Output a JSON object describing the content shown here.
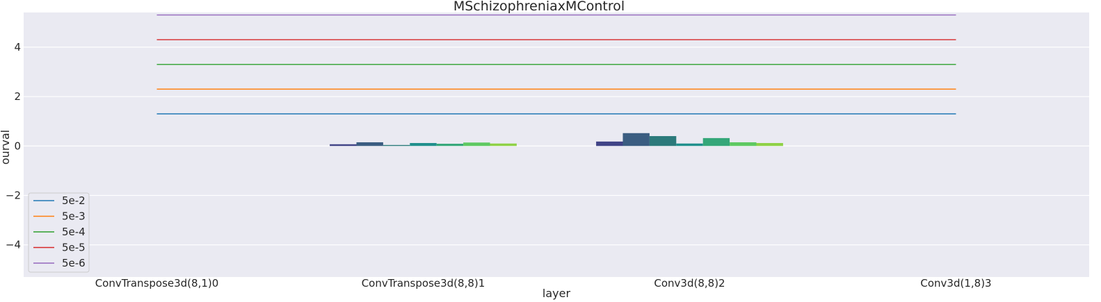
{
  "chart_data": {
    "type": "bar",
    "title": "MSchizophreniaxMControl",
    "xlabel": "layer",
    "ylabel": "ourval",
    "ylim": [
      -5.3,
      5.4
    ],
    "yticks": [
      -4,
      -2,
      0,
      2,
      4
    ],
    "ytick_labels": [
      "−4",
      "−2",
      "0",
      "2",
      "4"
    ],
    "grid": true,
    "legend_position": "lower-left",
    "categories": [
      "ConvTranspose3d(8,1)0",
      "ConvTranspose3d(8,8)1",
      "Conv3d(8,8)2",
      "Conv3d(1,8)3"
    ],
    "bar_colors": [
      "#414487",
      "#3b5d81",
      "#2c7a7b",
      "#21908d",
      "#35a779",
      "#5ec962",
      "#8fd147",
      "#b5d334"
    ],
    "bar_groups": [
      [],
      [
        0.07,
        0.15,
        0.04,
        0.12,
        0.09,
        0.14,
        0.1
      ],
      [
        0.18,
        0.52,
        0.4,
        0.1,
        0.32,
        0.15,
        0.12
      ],
      []
    ],
    "threshold_lines": [
      {
        "name": "5e-2",
        "value": 1.3,
        "color": "#1f77b4"
      },
      {
        "name": "5e-3",
        "value": 2.3,
        "color": "#ff7f0e"
      },
      {
        "name": "5e-4",
        "value": 3.3,
        "color": "#2ca02c"
      },
      {
        "name": "5e-5",
        "value": 4.3,
        "color": "#d62728"
      },
      {
        "name": "5e-6",
        "value": 5.3,
        "color": "#9467bd"
      }
    ],
    "colors": {
      "plot_background": "#eaeaf2",
      "grid": "#ffffff",
      "legend_background": "#eaeaf2",
      "legend_border": "#cccccc"
    }
  }
}
